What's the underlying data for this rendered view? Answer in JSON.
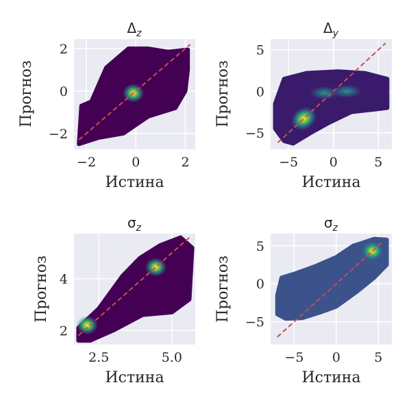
{
  "chart_data": [
    {
      "type": "scatter",
      "title": "Δ_z",
      "title_main": "Δ",
      "title_sub": "z",
      "xlabel": "Истина",
      "ylabel": "Прогноз",
      "xlim": [
        -2.5,
        2.4
      ],
      "ylim": [
        -2.75,
        2.45
      ],
      "xticks": [
        -2,
        0,
        2
      ],
      "xtick_labels": [
        "−2",
        "0",
        "2"
      ],
      "yticks": [
        -2,
        0,
        2
      ],
      "ytick_labels": [
        "−2",
        "0",
        "2"
      ],
      "grid": true,
      "colormap": "viridis",
      "diagonal": [
        [
          -2.3,
          -2.3
        ],
        [
          2.2,
          2.2
        ]
      ],
      "hotspots": [
        {
          "x": -0.1,
          "y": -0.1
        }
      ],
      "point_cloud": [
        [
          -2.3,
          -2.5
        ],
        [
          -2.2,
          -0.7
        ],
        [
          -1.8,
          -0.5
        ],
        [
          -1.2,
          1.1
        ],
        [
          -0.8,
          1.5
        ],
        [
          -0.3,
          2.0
        ],
        [
          0.5,
          2.0
        ],
        [
          1.3,
          1.85
        ],
        [
          2.1,
          1.95
        ],
        [
          2.1,
          1.0
        ],
        [
          2.0,
          0.0
        ],
        [
          1.6,
          -0.8
        ],
        [
          0.5,
          -1.2
        ],
        [
          -0.5,
          -2.0
        ],
        [
          -1.5,
          -2.2
        ]
      ]
    },
    {
      "type": "scatter",
      "title": "Δ_y",
      "title_main": "Δ",
      "title_sub": "y",
      "xlabel": "Истина",
      "ylabel": "Прогноз",
      "xlim": [
        -7,
        6.5
      ],
      "ylim": [
        -7,
        6.3
      ],
      "xticks": [
        -5,
        0,
        5
      ],
      "xtick_labels": [
        "−5",
        "0",
        "5"
      ],
      "yticks": [
        -5,
        0,
        5
      ],
      "ytick_labels": [
        "−5",
        "0",
        "5"
      ],
      "grid": true,
      "colormap": "viridis",
      "diagonal": [
        [
          -6.2,
          -6.2
        ],
        [
          5.8,
          5.8
        ]
      ],
      "hotspots": [
        {
          "x": -3.3,
          "y": -3.3
        },
        {
          "x": -1.0,
          "y": -0.2
        },
        {
          "x": 1.5,
          "y": 0.0
        }
      ],
      "point_cloud": [
        [
          -6.5,
          -1.5
        ],
        [
          -6.5,
          -4.5
        ],
        [
          -5.5,
          -6.0
        ],
        [
          -4.5,
          -6.3
        ],
        [
          -2.5,
          -5.0
        ],
        [
          -0.5,
          -3.8
        ],
        [
          2.0,
          -2.5
        ],
        [
          4.5,
          -2.2
        ],
        [
          6.0,
          -2.0
        ],
        [
          6.0,
          1.5
        ],
        [
          3.5,
          2.2
        ],
        [
          0.5,
          2.4
        ],
        [
          -3.0,
          2.2
        ],
        [
          -5.5,
          1.5
        ]
      ]
    },
    {
      "type": "scatter",
      "title": "σ_z",
      "title_main": "σ",
      "title_sub": "z",
      "xlabel": "Истина",
      "ylabel": "Прогноз",
      "xlim": [
        1.65,
        5.8
      ],
      "ylim": [
        1.45,
        5.75
      ],
      "xticks": [
        2.5,
        5.0
      ],
      "xtick_labels": [
        "2.5",
        "5.0"
      ],
      "yticks": [
        2,
        4
      ],
      "ytick_labels": [
        "2",
        "4"
      ],
      "grid": true,
      "colormap": "viridis",
      "diagonal": [
        [
          1.8,
          1.8
        ],
        [
          5.6,
          5.6
        ]
      ],
      "hotspots": [
        {
          "x": 4.45,
          "y": 4.45
        },
        {
          "x": 2.1,
          "y": 2.2
        }
      ],
      "point_cloud": [
        [
          1.8,
          1.6
        ],
        [
          1.8,
          2.1
        ],
        [
          2.5,
          2.85
        ],
        [
          3.3,
          4.1
        ],
        [
          3.9,
          4.8
        ],
        [
          4.6,
          5.3
        ],
        [
          5.3,
          5.6
        ],
        [
          5.7,
          5.2
        ],
        [
          5.6,
          3.2
        ],
        [
          5.0,
          2.7
        ],
        [
          4.0,
          2.6
        ],
        [
          3.0,
          2.0
        ],
        [
          2.2,
          1.6
        ]
      ]
    },
    {
      "type": "scatter",
      "title": "σ_z",
      "title_main": "σ",
      "title_sub": "z",
      "xlabel": "Истина",
      "ylabel": "Прогноз",
      "xlim": [
        -7.8,
        6.6
      ],
      "ylim": [
        -8,
        6.6
      ],
      "xticks": [
        -5,
        0,
        5
      ],
      "xtick_labels": [
        "−5",
        "0",
        "5"
      ],
      "yticks": [
        -5,
        0,
        5
      ],
      "ytick_labels": [
        "−5",
        "0",
        "5"
      ],
      "grid": true,
      "colormap": "viridis",
      "diagonal": [
        [
          -7.0,
          -7.0
        ],
        [
          5.5,
          5.5
        ]
      ],
      "hotspots": [
        {
          "x": 4.3,
          "y": 4.3
        }
      ],
      "point_cloud": [
        [
          -7.0,
          -1.5
        ],
        [
          -7.0,
          -4.0
        ],
        [
          -6.0,
          -4.6
        ],
        [
          -4.0,
          -4.5
        ],
        [
          -2.0,
          -3.8
        ],
        [
          0.0,
          -3.0
        ],
        [
          2.5,
          -1.0
        ],
        [
          4.5,
          0.8
        ],
        [
          6.0,
          2.5
        ],
        [
          6.0,
          5.8
        ],
        [
          4.5,
          5.9
        ],
        [
          2.0,
          5.0
        ],
        [
          0.0,
          3.5
        ],
        [
          -2.5,
          2.3
        ],
        [
          -5.0,
          1.3
        ],
        [
          -6.5,
          0.8
        ]
      ]
    }
  ]
}
